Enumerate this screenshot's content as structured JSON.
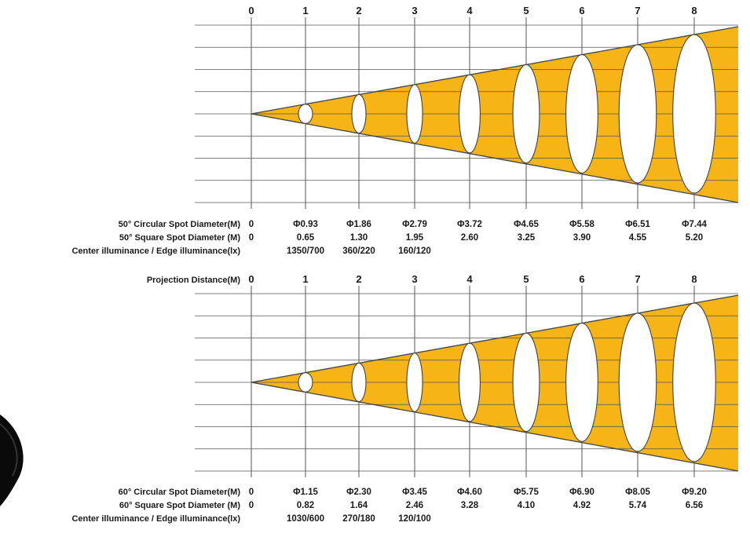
{
  "colors": {
    "beam": "#f6b417",
    "line": "#444444",
    "grid": "#555555"
  },
  "decoration": "black-lamp-edge-shape",
  "diagrams": [
    {
      "id": "beam-50",
      "distances": [
        "0",
        "1",
        "2",
        "3",
        "4",
        "5",
        "6",
        "7",
        "8"
      ],
      "show_projection_label": false,
      "rows": [
        {
          "label": "50°  Circular Spot Diameter(M)",
          "values": [
            "0",
            "Φ0.93",
            "Φ1.86",
            "Φ2.79",
            "Φ3.72",
            "Φ4.65",
            "Φ5.58",
            "Φ6.51",
            "Φ7.44"
          ]
        },
        {
          "label": "50°  Square Spot Diameter  (M)",
          "values": [
            "0",
            "0.65",
            "1.30",
            "1.95",
            "2.60",
            "3.25",
            "3.90",
            "4.55",
            "5.20"
          ]
        },
        {
          "label": "Center illuminance / Edge illuminance(lx)",
          "values": [
            "",
            "1350/700",
            "360/220",
            "160/120",
            "",
            "",
            "",
            "",
            ""
          ]
        }
      ]
    },
    {
      "id": "beam-60",
      "distances": [
        "0",
        "1",
        "2",
        "3",
        "4",
        "5",
        "6",
        "7",
        "8"
      ],
      "show_projection_label": true,
      "projection_label": "Projection Distance(M)",
      "rows": [
        {
          "label": "60°  Circular Spot Diameter(M)",
          "values": [
            "0",
            "Φ1.15",
            "Φ2.30",
            "Φ3.45",
            "Φ4.60",
            "Φ5.75",
            "Φ6.90",
            "Φ8.05",
            "Φ9.20"
          ]
        },
        {
          "label": "60°  Square Spot Diameter  (M)",
          "values": [
            "0",
            "0.82",
            "1.64",
            "2.46",
            "3.28",
            "4.10",
            "4.92",
            "5.74",
            "6.56"
          ]
        },
        {
          "label": "Center illuminance / Edge illuminance(lx)",
          "values": [
            "",
            "1030/600",
            "270/180",
            "120/100",
            "",
            "",
            "",
            "",
            ""
          ]
        }
      ]
    }
  ]
}
